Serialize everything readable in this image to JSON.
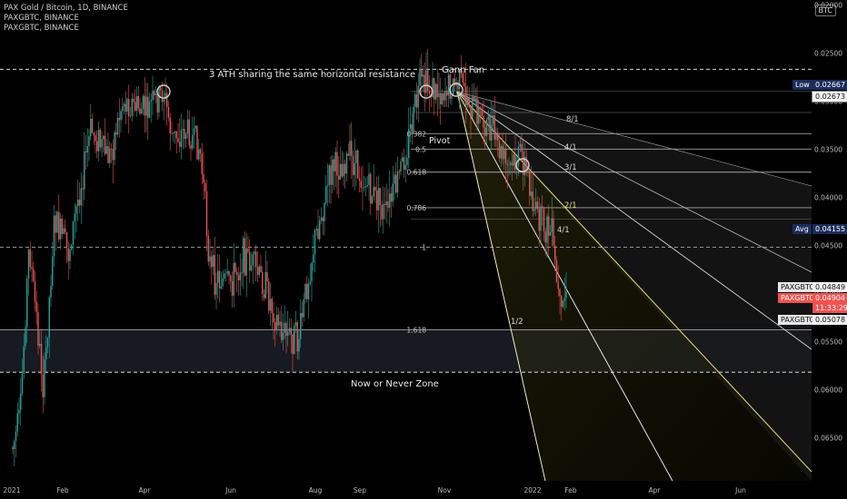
{
  "header": {
    "symbol_line": "PAX Gold / Bitcoin, 1D, BINANCE",
    "indicators": [
      "PAXGBTC, BINANCE",
      "PAXGBTC, BINANCE"
    ],
    "currency_button": "BTC"
  },
  "chart_data": {
    "type": "candlestick",
    "price_axis_inverted": true,
    "y_ticks": [
      "0.02000",
      "0.02500",
      "0.03000",
      "0.03500",
      "0.04000",
      "0.04500",
      "0.05000",
      "0.05500",
      "0.06000",
      "0.06500"
    ],
    "x_ticks": [
      "2021",
      "Feb",
      "Apr",
      "Jun",
      "Aug",
      "Sep",
      "Nov",
      "2022",
      "Feb",
      "Apr",
      "Jun"
    ],
    "ylim": [
      0.0195,
      0.0695
    ],
    "price_tags": [
      {
        "label": "Low",
        "value": "0.02667"
      },
      {
        "label": "",
        "value": "0.02673"
      },
      {
        "label": "Avg",
        "value": "0.04155"
      },
      {
        "label": "PAXGBTC",
        "value": "0.04849"
      },
      {
        "label": "PAXGBTC",
        "value": "0.04904",
        "sub": "11:33:29"
      },
      {
        "label": "PAXGBTC",
        "value": "0.05078"
      }
    ],
    "horizontal_resistance": 0.0267,
    "zone": {
      "top": 0.0538,
      "bottom": 0.0582
    },
    "fib_levels": [
      {
        "label": "0.382",
        "value": 0.0334
      },
      {
        "label": "0.5",
        "value": 0.035
      },
      {
        "label": "0.618",
        "value": 0.0374
      },
      {
        "label": "0.786",
        "value": 0.0411
      },
      {
        "label": "1",
        "value": 0.0452
      },
      {
        "label": "1.618",
        "value": 0.0538
      }
    ],
    "gann_labels": [
      "8/1",
      "4/1",
      "3/1",
      "2/1",
      "4/1",
      "1/2"
    ],
    "annotations": {
      "ath": "3 ATH sharing the same horizontal resistance",
      "gann": "Gann Fan",
      "pivot": "Pivot",
      "zone": "Now or Never Zone"
    },
    "colors": {
      "up": "#26a69a",
      "down": "#ef5350",
      "fan": "#e6e27a",
      "zone": "#2a2f3a"
    }
  }
}
